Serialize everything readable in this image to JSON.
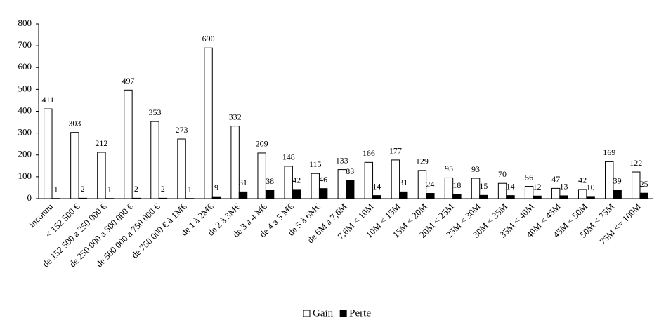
{
  "chart_data": {
    "type": "bar",
    "categories": [
      "inconnu",
      "< 152 500 €",
      "de 152 500 à 250 000 €",
      "de 250 000 à 500 000 €",
      "de 500 000 à 750 000 €",
      "de 750 000 € à 1M€",
      "de 1 à 2M€",
      "de 2 à 3M€",
      "de 3 à 4 M€",
      "de 4 à 5 M€",
      "de 5 à 6M€",
      "de 6M à 7,6M",
      "7,6M < 10M",
      "10M < 15M",
      "15M < 20M",
      "20M < 25M",
      "25M < 30M",
      "30M < 35M",
      "35M < 40M",
      "40M < 45M",
      "45M < 50M",
      "50M < 75M",
      "75M <= 100M"
    ],
    "series": [
      {
        "name": "Gain",
        "color": "#ffffff",
        "values": [
          411,
          303,
          212,
          497,
          353,
          273,
          690,
          332,
          209,
          148,
          115,
          133,
          166,
          177,
          129,
          95,
          93,
          70,
          56,
          47,
          42,
          169,
          122
        ]
      },
      {
        "name": "Perte",
        "color": "#000000",
        "values": [
          1,
          2,
          1,
          2,
          2,
          1,
          9,
          31,
          38,
          42,
          46,
          83,
          14,
          31,
          24,
          18,
          15,
          14,
          12,
          13,
          10,
          39,
          25
        ]
      }
    ],
    "ylim": [
      0,
      800
    ],
    "yticks": [
      0,
      100,
      200,
      300,
      400,
      500,
      600,
      700,
      800
    ],
    "grid": false,
    "legend": "bottom"
  }
}
